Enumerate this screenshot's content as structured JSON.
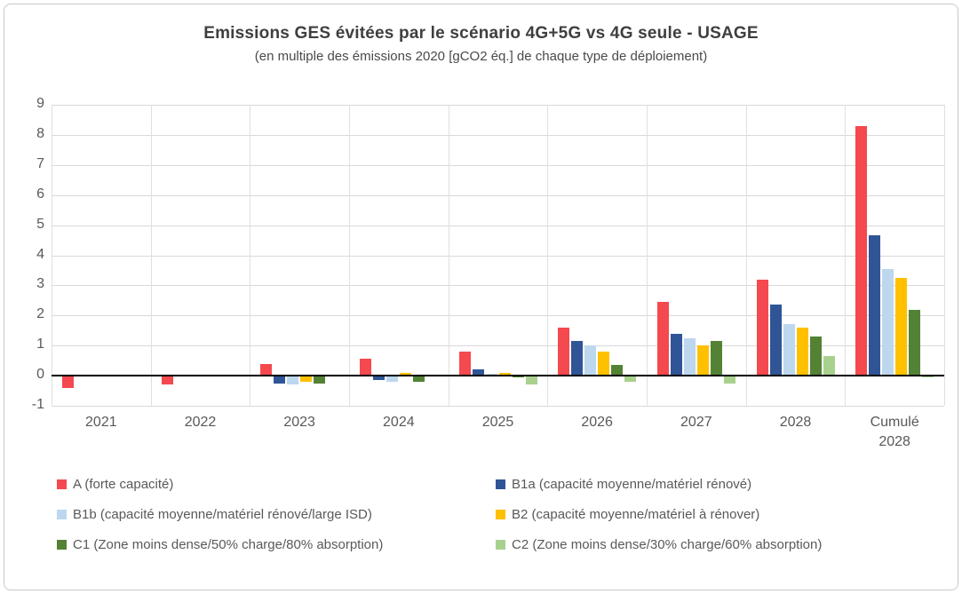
{
  "chart_data": {
    "type": "bar",
    "title": "Emissions GES évitées par le scénario 4G+5G vs 4G seule - USAGE",
    "subtitle": "(en multiple des émissions 2020 [gCO2 éq.] de chaque type de déploiement)",
    "categories": [
      "2021",
      "2022",
      "2023",
      "2024",
      "2025",
      "2026",
      "2027",
      "2028",
      "Cumulé\n2028"
    ],
    "series": [
      {
        "name": "A (forte capacité)",
        "color": "#f4494e",
        "values": [
          -0.4,
          -0.3,
          0.4,
          0.55,
          0.8,
          1.6,
          2.45,
          3.2,
          8.3
        ]
      },
      {
        "name": "B1a (capacité moyenne/matériel rénové)",
        "color": "#2f5597",
        "values": [
          0,
          0,
          -0.25,
          -0.15,
          0.2,
          1.15,
          1.4,
          2.35,
          4.65
        ]
      },
      {
        "name": "B1b (capacité moyenne/matériel rénové/large ISD)",
        "color": "#bdd7ee",
        "values": [
          0,
          0,
          -0.3,
          -0.2,
          0.05,
          1.0,
          1.25,
          1.7,
          3.55
        ]
      },
      {
        "name": "B2 (capacité moyenne/matériel à rénover)",
        "color": "#ffc000",
        "values": [
          0,
          0,
          -0.2,
          0.1,
          0.1,
          0.8,
          1.0,
          1.6,
          3.25
        ]
      },
      {
        "name": "C1 (Zone moins dense/50% charge/80% absorption)",
        "color": "#548235",
        "values": [
          0,
          0,
          -0.25,
          -0.2,
          -0.05,
          0.35,
          1.15,
          1.3,
          2.2
        ]
      },
      {
        "name": "C2 (Zone moins dense/30% charge/60% absorption)",
        "color": "#a9d18e",
        "values": [
          0,
          0,
          0,
          0,
          -0.3,
          -0.2,
          -0.25,
          0.65,
          -0.05
        ]
      }
    ],
    "ylim": [
      -1,
      9
    ],
    "yticks": [
      9,
      8,
      7,
      6,
      5,
      4,
      3,
      2,
      1,
      0,
      -1
    ],
    "grid": "horizontal-and-category-boundaries",
    "legend_position": "bottom-two-columns",
    "axis_color": "#595959",
    "zero_line_color": "#000000",
    "gridline_color": "#d9d9d9"
  }
}
